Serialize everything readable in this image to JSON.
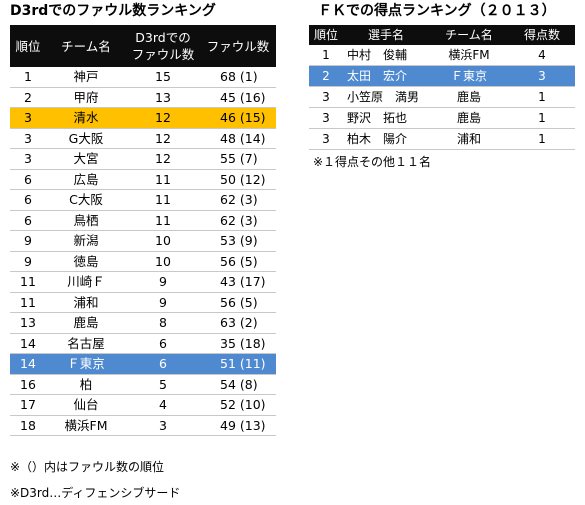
{
  "foul_ranking": {
    "title": "D3rdでのファウル数ランキング",
    "headers": {
      "rank": "順位",
      "team": "チーム名",
      "d3_line1": "D3rdでの",
      "d3_line2": "ファウル数",
      "fouls": "ファウル数"
    },
    "rows": [
      {
        "rank": "1",
        "team": "神戸",
        "d3": "15",
        "fouls": "68 (1)",
        "highlight": ""
      },
      {
        "rank": "2",
        "team": "甲府",
        "d3": "13",
        "fouls": "45 (16)",
        "highlight": ""
      },
      {
        "rank": "3",
        "team": "清水",
        "d3": "12",
        "fouls": "46 (15)",
        "highlight": "yellow"
      },
      {
        "rank": "3",
        "team": "G大阪",
        "d3": "12",
        "fouls": "48 (14)",
        "highlight": ""
      },
      {
        "rank": "3",
        "team": "大宮",
        "d3": "12",
        "fouls": "55 (7)",
        "highlight": ""
      },
      {
        "rank": "6",
        "team": "広島",
        "d3": "11",
        "fouls": "50 (12)",
        "highlight": ""
      },
      {
        "rank": "6",
        "team": "C大阪",
        "d3": "11",
        "fouls": "62 (3)",
        "highlight": ""
      },
      {
        "rank": "6",
        "team": "鳥栖",
        "d3": "11",
        "fouls": "62 (3)",
        "highlight": ""
      },
      {
        "rank": "9",
        "team": "新潟",
        "d3": "10",
        "fouls": "53 (9)",
        "highlight": ""
      },
      {
        "rank": "9",
        "team": "徳島",
        "d3": "10",
        "fouls": "56 (5)",
        "highlight": ""
      },
      {
        "rank": "11",
        "team": "川崎Ｆ",
        "d3": "9",
        "fouls": "43 (17)",
        "highlight": ""
      },
      {
        "rank": "11",
        "team": "浦和",
        "d3": "9",
        "fouls": "56 (5)",
        "highlight": ""
      },
      {
        "rank": "13",
        "team": "鹿島",
        "d3": "8",
        "fouls": "63 (2)",
        "highlight": ""
      },
      {
        "rank": "14",
        "team": "名古屋",
        "d3": "6",
        "fouls": "35 (18)",
        "highlight": ""
      },
      {
        "rank": "14",
        "team": "Ｆ東京",
        "d3": "6",
        "fouls": "51 (11)",
        "highlight": "blue"
      },
      {
        "rank": "16",
        "team": "柏",
        "d3": "5",
        "fouls": "54 (8)",
        "highlight": ""
      },
      {
        "rank": "17",
        "team": "仙台",
        "d3": "4",
        "fouls": "52 (10)",
        "highlight": ""
      },
      {
        "rank": "18",
        "team": "横浜FM",
        "d3": "3",
        "fouls": "49 (13)",
        "highlight": ""
      }
    ],
    "notes": [
      "※（）内はファウル数の順位",
      "※D3rd…ディフェンシブサード"
    ]
  },
  "fk_ranking": {
    "title": "ＦＫでの得点ランキング（２０１３）",
    "headers": {
      "rank": "順位",
      "player": "選手名",
      "team": "チーム名",
      "goals": "得点数"
    },
    "rows": [
      {
        "rank": "1",
        "player": "中村　俊輔",
        "team": "横浜FM",
        "goals": "4",
        "highlight": ""
      },
      {
        "rank": "2",
        "player": "太田　宏介",
        "team": "Ｆ東京",
        "goals": "3",
        "highlight": "blue"
      },
      {
        "rank": "3",
        "player": "小笠原　満男",
        "team": "鹿島",
        "goals": "1",
        "highlight": ""
      },
      {
        "rank": "3",
        "player": "野沢　拓也",
        "team": "鹿島",
        "goals": "1",
        "highlight": ""
      },
      {
        "rank": "3",
        "player": "柏木　陽介",
        "team": "浦和",
        "goals": "1",
        "highlight": ""
      }
    ],
    "note": "※１得点その他１１名"
  },
  "colors": {
    "header_bg": "#0d0d0d",
    "highlight_yellow": "#ffc000",
    "highlight_blue": "#4f8ad1"
  }
}
